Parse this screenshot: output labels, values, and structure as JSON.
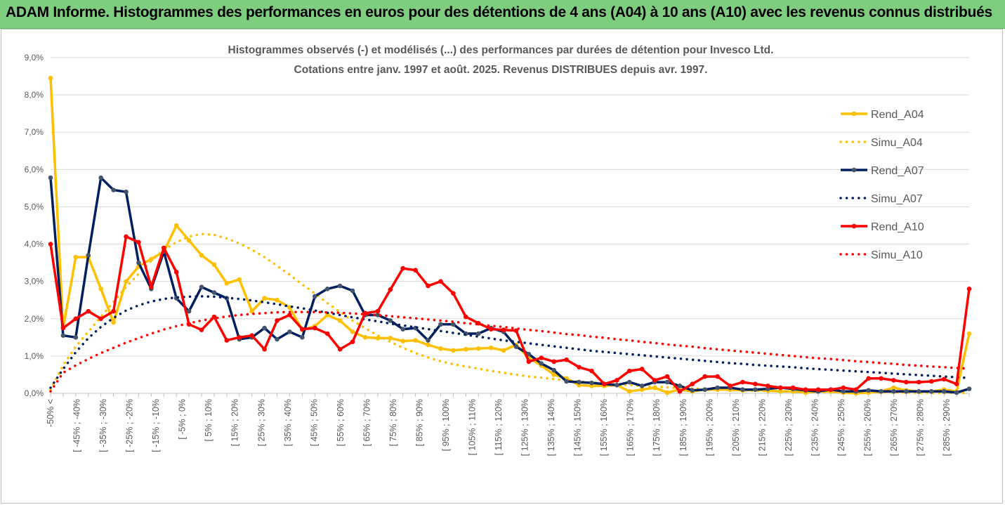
{
  "banner": {
    "title": "ADAM Informe. Histogrammes des performances en euros pour des détentions de 4 ans (A04) à 10 ans (A10) avec les revenus connus distribués",
    "background": "#7fce7f"
  },
  "chart_data": {
    "type": "line",
    "title": "Histogrammes observés (-) et modélisés (...) des performances par durées de détention pour Invesco Ltd.",
    "subtitle": "Cotations entre janv. 1997 et août. 2025. Revenus DISTRIBUES depuis avr.  1997.",
    "ylim": [
      0,
      9
    ],
    "yticks": [
      "0,0%",
      "1,0%",
      "2,0%",
      "3,0%",
      "4,0%",
      "5,0%",
      "6,0%",
      "7,0%",
      "8,0%",
      "9,0%"
    ],
    "grid": true,
    "legend_position": "right",
    "x_tick_labels": [
      "-50% <",
      "[ -45% ; -40%",
      "[ -35% ; -30%",
      "[ -25% ; -20%",
      "[ -15% ; -10%",
      "[ -5% ; 0%",
      "[ 5% ; 10%",
      "[ 15% ; 20%",
      "[ 25% ; 30%",
      "[ 35% ; 40%",
      "[ 45% ; 50%",
      "[ 55% ; 60%",
      "[ 65% ; 70%",
      "[ 75% ; 80%",
      "[ 85% ; 90%",
      "[ 95% ; 100%",
      "[ 105% ; 110%",
      "[ 115% ; 120%",
      "[ 125% ; 130%",
      "[ 135% ; 140%",
      "[ 145% ; 150%",
      "[ 155% ; 160%",
      "[ 165% ; 170%",
      "[ 175% ; 180%",
      "[ 185% ; 190%",
      "[ 195% ; 200%",
      "[ 205% ; 210%",
      "[ 215% ; 220%",
      "[ 225% ; 230%",
      "[ 235% ; 240%",
      "[ 245% ; 250%",
      "[ 255% ; 260%",
      "[ 265% ; 270%",
      "[ 275% ; 280%",
      "[ 285% ; 290%"
    ],
    "series": [
      {
        "name": "Rend_A04",
        "color": "#ffc000",
        "style": "solid",
        "values": [
          8.45,
          1.75,
          3.65,
          3.65,
          2.8,
          1.9,
          3.0,
          3.4,
          3.6,
          3.8,
          4.5,
          4.1,
          3.7,
          3.45,
          2.95,
          3.05,
          2.2,
          2.55,
          2.5,
          2.3,
          1.7,
          1.8,
          2.1,
          1.95,
          1.65,
          1.5,
          1.48,
          1.48,
          1.4,
          1.42,
          1.3,
          1.2,
          1.15,
          1.18,
          1.2,
          1.22,
          1.15,
          1.3,
          0.95,
          0.75,
          0.5,
          0.4,
          0.22,
          0.2,
          0.2,
          0.22,
          0.05,
          0.1,
          0.15,
          0.02,
          0.1,
          0.05,
          0.1,
          0.1,
          0.1,
          0.08,
          0.1,
          0.07,
          0.05,
          0.05,
          0.02,
          0.05,
          0.05,
          0.02,
          0.0,
          0.02,
          0.05,
          0.15,
          0.08,
          0.05,
          0.05,
          0.1,
          0.05,
          1.6
        ]
      },
      {
        "name": "Simu_A04",
        "color": "#ffc000",
        "style": "dotted",
        "values": [
          0.1,
          0.75,
          1.25,
          1.65,
          2.05,
          2.45,
          2.85,
          3.2,
          3.55,
          3.85,
          4.05,
          4.2,
          4.27,
          4.25,
          4.15,
          4.02,
          3.85,
          3.65,
          3.42,
          3.18,
          2.92,
          2.68,
          2.42,
          2.18,
          1.95,
          1.75,
          1.55,
          1.38,
          1.22,
          1.08,
          0.96,
          0.86,
          0.78,
          0.72,
          0.66,
          0.6,
          0.55,
          0.5,
          0.45,
          0.42,
          0.38,
          0.35,
          0.32,
          0.29,
          0.27,
          0.24,
          0.22,
          0.2,
          0.18,
          0.16,
          0.14,
          0.13,
          0.12,
          0.1,
          0.09,
          0.08,
          0.07,
          0.06,
          0.06,
          0.05,
          0.04,
          0.04,
          0.03,
          0.03,
          0.03,
          0.02,
          0.02,
          0.02,
          0.02,
          0.01,
          0.01,
          0.01,
          0.01,
          0.01
        ]
      },
      {
        "name": "Rend_A07",
        "color": "#002060",
        "style": "solid",
        "values": [
          5.78,
          1.55,
          1.5,
          3.7,
          5.78,
          5.45,
          5.4,
          3.5,
          2.8,
          3.8,
          2.55,
          2.2,
          2.85,
          2.7,
          2.55,
          1.45,
          1.5,
          1.75,
          1.45,
          1.65,
          1.5,
          2.6,
          2.8,
          2.88,
          2.75,
          2.1,
          2.1,
          1.95,
          1.72,
          1.75,
          1.42,
          1.85,
          1.85,
          1.6,
          1.6,
          1.75,
          1.65,
          1.25,
          1.05,
          0.8,
          0.62,
          0.32,
          0.3,
          0.28,
          0.25,
          0.22,
          0.3,
          0.2,
          0.3,
          0.3,
          0.2,
          0.08,
          0.1,
          0.15,
          0.15,
          0.1,
          0.1,
          0.12,
          0.15,
          0.12,
          0.08,
          0.05,
          0.1,
          0.05,
          0.05,
          0.08,
          0.05,
          0.05,
          0.05,
          0.05,
          0.05,
          0.05,
          0.02,
          0.12
        ]
      },
      {
        "name": "Simu_A07",
        "color": "#002060",
        "style": "dotted",
        "values": [
          0.15,
          0.65,
          1.1,
          1.48,
          1.78,
          2.02,
          2.22,
          2.36,
          2.46,
          2.53,
          2.57,
          2.59,
          2.6,
          2.59,
          2.56,
          2.53,
          2.49,
          2.44,
          2.39,
          2.33,
          2.28,
          2.22,
          2.16,
          2.1,
          2.04,
          1.98,
          1.93,
          1.87,
          1.82,
          1.77,
          1.72,
          1.67,
          1.62,
          1.57,
          1.52,
          1.47,
          1.42,
          1.38,
          1.34,
          1.3,
          1.26,
          1.22,
          1.18,
          1.14,
          1.11,
          1.08,
          1.05,
          1.02,
          0.99,
          0.96,
          0.93,
          0.9,
          0.87,
          0.84,
          0.81,
          0.79,
          0.76,
          0.74,
          0.72,
          0.7,
          0.67,
          0.65,
          0.63,
          0.61,
          0.59,
          0.57,
          0.55,
          0.53,
          0.51,
          0.49,
          0.47,
          0.45,
          0.43,
          0.41
        ]
      },
      {
        "name": "Rend_A10",
        "color": "#ff0000",
        "style": "solid",
        "values": [
          4.0,
          1.75,
          2.0,
          2.2,
          2.0,
          2.2,
          4.2,
          4.05,
          2.85,
          3.9,
          3.25,
          1.85,
          1.7,
          2.05,
          1.42,
          1.5,
          1.55,
          1.18,
          1.95,
          2.1,
          1.72,
          1.75,
          1.6,
          1.18,
          1.38,
          2.15,
          2.2,
          2.78,
          3.35,
          3.3,
          2.88,
          3.0,
          2.68,
          2.05,
          1.88,
          1.72,
          1.7,
          1.68,
          0.85,
          0.95,
          0.85,
          0.9,
          0.7,
          0.6,
          0.25,
          0.35,
          0.6,
          0.65,
          0.35,
          0.45,
          0.05,
          0.25,
          0.45,
          0.45,
          0.2,
          0.3,
          0.25,
          0.2,
          0.15,
          0.15,
          0.1,
          0.1,
          0.1,
          0.15,
          0.1,
          0.4,
          0.4,
          0.35,
          0.3,
          0.3,
          0.32,
          0.38,
          0.25,
          2.8
        ]
      },
      {
        "name": "Simu_A10",
        "color": "#ff0000",
        "style": "dotted",
        "values": [
          0.05,
          0.55,
          0.75,
          0.92,
          1.08,
          1.22,
          1.36,
          1.48,
          1.6,
          1.71,
          1.8,
          1.88,
          1.95,
          2.01,
          2.06,
          2.1,
          2.13,
          2.15,
          2.17,
          2.18,
          2.18,
          2.18,
          2.17,
          2.16,
          2.14,
          2.12,
          2.1,
          2.07,
          2.04,
          2.01,
          1.98,
          1.95,
          1.92,
          1.88,
          1.85,
          1.81,
          1.78,
          1.74,
          1.7,
          1.67,
          1.63,
          1.59,
          1.56,
          1.52,
          1.49,
          1.45,
          1.42,
          1.38,
          1.35,
          1.31,
          1.28,
          1.25,
          1.21,
          1.18,
          1.15,
          1.12,
          1.09,
          1.06,
          1.03,
          1.0,
          0.97,
          0.94,
          0.92,
          0.89,
          0.86,
          0.84,
          0.81,
          0.79,
          0.76,
          0.74,
          0.72,
          0.7,
          0.68,
          0.66
        ]
      }
    ]
  }
}
